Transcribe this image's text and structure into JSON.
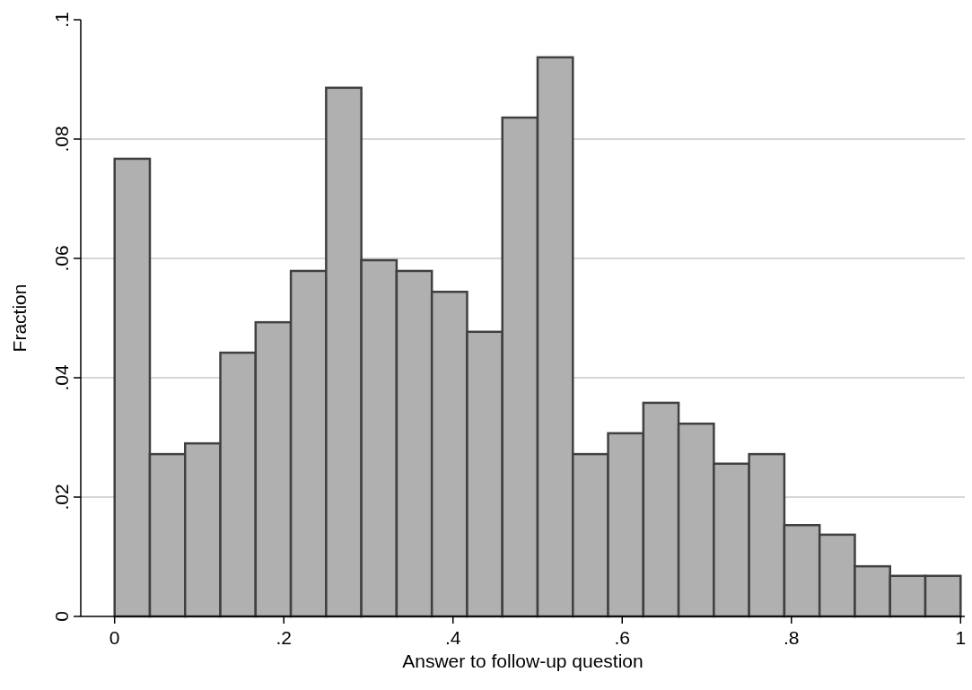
{
  "chart_data": {
    "type": "histogram",
    "xlabel": "Answer to follow-up question",
    "ylabel": "Fraction",
    "bins": [
      0,
      0.041667,
      0.083333,
      0.125,
      0.166667,
      0.208333,
      0.25,
      0.291667,
      0.333333,
      0.375,
      0.416667,
      0.458333,
      0.5,
      0.541667,
      0.583333,
      0.625,
      0.666667,
      0.708333,
      0.75,
      0.791667,
      0.833333,
      0.875,
      0.916667,
      0.958333,
      1
    ],
    "values": [
      0.0767,
      0.0272,
      0.029,
      0.0442,
      0.0493,
      0.0579,
      0.0886,
      0.0597,
      0.0579,
      0.0544,
      0.0477,
      0.0836,
      0.0937,
      0.0272,
      0.0307,
      0.0358,
      0.0323,
      0.0256,
      0.0272,
      0.0153,
      0.0137,
      0.0084,
      0.0068,
      0.0068
    ],
    "color": "#b0b0b0",
    "xlim": [
      -0.04,
      1.005
    ],
    "xticks": [
      0,
      {
        "value": 0.2,
        "label": ".2"
      },
      {
        "value": 0.4,
        "label": ".4"
      },
      {
        "value": 0.6,
        "label": ".6"
      },
      {
        "value": 0.8,
        "label": ".8"
      },
      1
    ],
    "ylim": [
      0,
      0.1
    ],
    "yticks": [
      0,
      {
        "value": 0.02,
        "label": ".02"
      },
      {
        "value": 0.04,
        "label": ".04"
      },
      {
        "value": 0.06,
        "label": ".06"
      },
      {
        "value": 0.08,
        "label": ".08"
      },
      {
        "value": 0.1,
        "label": ".1"
      }
    ],
    "grid": "y"
  }
}
